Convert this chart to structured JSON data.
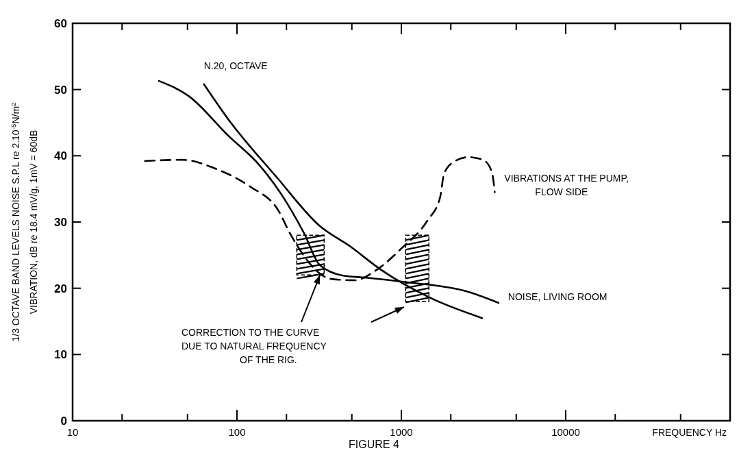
{
  "chart_data": {
    "type": "line",
    "title": "FIGURE 4",
    "xlabel": "FREQUENCY Hz",
    "ylabel": "1/3 OCTAVE BAND LEVELS NOISE S.P.L re 2.10$^{-5}$N/m$^{2}$\nVIBRATION, dB re 18.4 mV/g, 1mV = 60dB",
    "log": "x",
    "xlim": [
      10,
      100000
    ],
    "ylim": [
      0,
      60
    ],
    "xticks": [
      10,
      {
        "value": 20,
        "label": null
      },
      {
        "value": 50,
        "label": null
      },
      100,
      {
        "value": 200,
        "label": null
      },
      {
        "value": 500,
        "label": null
      },
      1000,
      {
        "value": 2000,
        "label": null
      },
      {
        "value": 5000,
        "label": null
      },
      10000,
      {
        "value": 20000,
        "label": null
      },
      {
        "value": 50000,
        "label": null
      }
    ],
    "yticks": [
      0,
      10,
      20,
      30,
      40,
      50,
      60
    ],
    "annotations": [
      {
        "text": "CORRECTION TO THE CURVE\nDUE TO NATURAL FREQUENCY\nOF THE RIG.",
        "x": 320,
        "y": 22
      }
    ],
    "series": [
      {
        "name": "N.20, OCTAVE",
        "color": "#000000",
        "line_style": "solid",
        "x": [
          63,
          88,
          174,
          319,
          490,
          741,
          1516,
          3100
        ],
        "values": [
          50.8,
          45.6,
          36.8,
          29.4,
          26.3,
          22.9,
          18.5,
          15.5
        ]
      },
      {
        "name": "NOISE, LIVING ROOM",
        "color": "#000000",
        "line_style": "solid",
        "x": [
          33.5,
          51,
          88,
          139,
          186,
          256,
          319,
          443,
          611,
          1090,
          2440,
          3900
        ],
        "values": [
          51.3,
          49.0,
          43.1,
          38.4,
          34.2,
          28.3,
          23.5,
          21.9,
          21.6,
          20.9,
          19.6,
          17.8
        ]
      },
      {
        "name": "VIBRATIONS AT THE PUMP,\nFLOW SIDE",
        "color": "#000000",
        "line_style": "dashed",
        "x": [
          27.6,
          46,
          75,
          121,
          179,
          210,
          377,
          518,
          719,
          1000,
          1440,
          1720,
          1820,
          2090,
          2560,
          3130,
          3550,
          3700
        ],
        "values": [
          39.2,
          39.4,
          38.0,
          35.3,
          31.7,
          28.3,
          21.4,
          21.2,
          22.9,
          26.0,
          30.2,
          33.7,
          37.3,
          39.1,
          39.8,
          39.4,
          37.6,
          34.5
        ]
      }
    ]
  }
}
